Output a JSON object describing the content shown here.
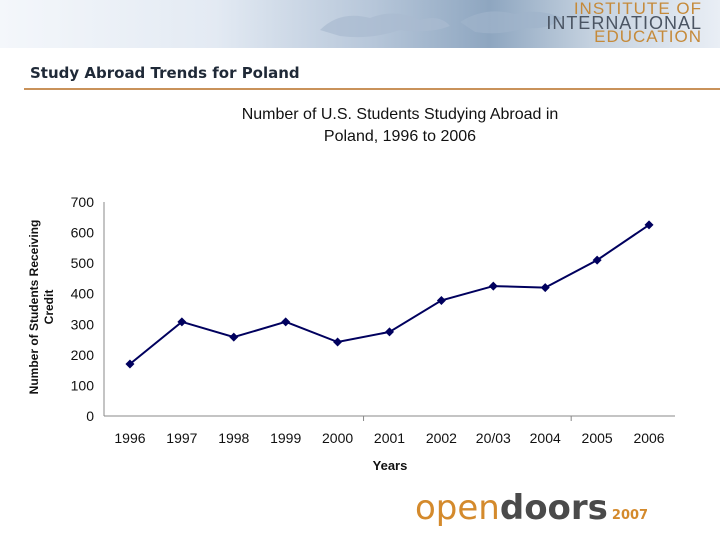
{
  "header": {
    "logo_lines": [
      "INSTITUTE OF",
      "INTERNATIONAL",
      "EDUCATION"
    ],
    "colors": {
      "logo_gold": "#c58a3a",
      "logo_gray": "#4b5563",
      "banner_blue": "#8ea6c0"
    }
  },
  "page": {
    "title": "Study Abroad Trends for Poland",
    "rule_color": "#c9925a"
  },
  "chart_data": {
    "type": "line",
    "title_lines": [
      "Number of U.S. Students Studying Abroad in",
      "Poland, 1996 to 2006"
    ],
    "xlabel": "Years",
    "ylabel_lines": [
      "Number of Students Receiving",
      "Credit"
    ],
    "categories": [
      "1996",
      "1997",
      "1998",
      "1999",
      "2000",
      "2001",
      "2002",
      "20/03",
      "2004",
      "2005",
      "2006"
    ],
    "series": [
      {
        "values": [
          170,
          308,
          258,
          308,
          242,
          275,
          378,
          425,
          420,
          510,
          625
        ]
      }
    ],
    "ylim": [
      0,
      700
    ],
    "yticks": [
      0,
      100,
      200,
      300,
      400,
      500,
      600,
      700
    ],
    "grid": false,
    "legend": "none",
    "line_color": "#00005e",
    "marker": "diamond"
  },
  "footer": {
    "logo_open": "open",
    "logo_doors": "doors",
    "logo_year": "2007",
    "colors": {
      "open": "#d48a2c",
      "doors": "#4a4a4a"
    }
  }
}
